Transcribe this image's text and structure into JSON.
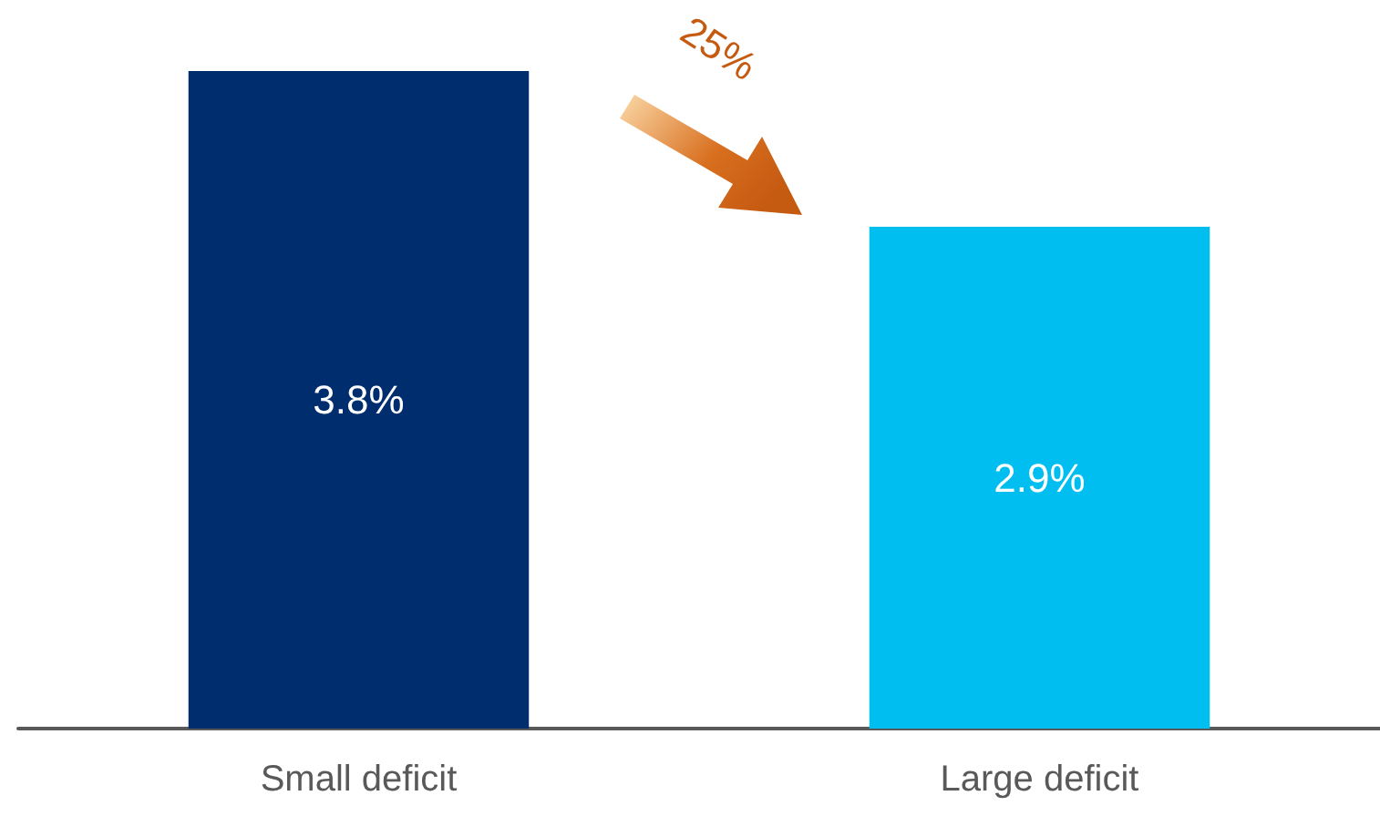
{
  "chart_data": {
    "type": "bar",
    "categories": [
      "Small deficit",
      "Large deficit"
    ],
    "values": [
      3.8,
      2.9
    ],
    "colors": [
      "#002d6e",
      "#00bef0"
    ],
    "value_labels": [
      "3.8%",
      "2.9%"
    ],
    "annotations": [
      "25%"
    ]
  }
}
